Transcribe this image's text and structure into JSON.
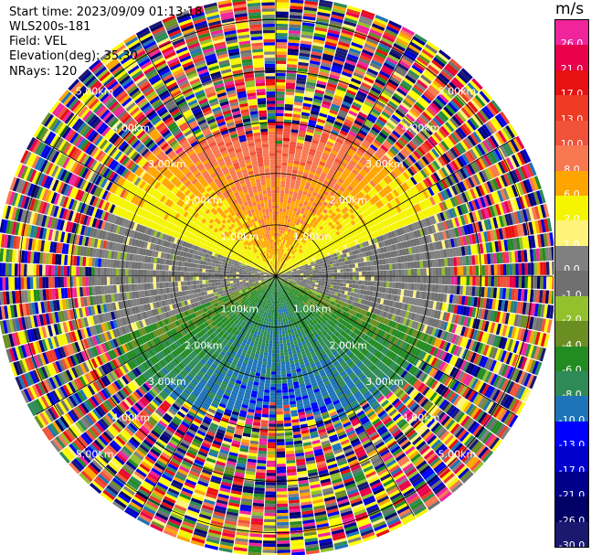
{
  "header": {
    "start_time": "Start time: 2023/09/09 01:13:18",
    "instrument": "WLS200s-181",
    "field": "Field: VEL",
    "elevation": "Elevation(deg): 35.30",
    "nrays": "NRays: 120"
  },
  "colorbar": {
    "unit": "m/s",
    "entries": [
      {
        "label": "26.0",
        "color": "#f0249b"
      },
      {
        "label": "21.0",
        "color": "#e8004a"
      },
      {
        "label": "17.0",
        "color": "#e81010"
      },
      {
        "label": "13.0",
        "color": "#ef3a24"
      },
      {
        "label": "10.0",
        "color": "#f0523a"
      },
      {
        "label": "8.0",
        "color": "#f87850"
      },
      {
        "label": "6.0",
        "color": "#ffa500"
      },
      {
        "label": "2.0",
        "color": "#f5f500"
      },
      {
        "label": "1.0",
        "color": "#fff37a"
      },
      {
        "label": "0.0",
        "color": "#808080"
      },
      {
        "label": "-1.0",
        "color": "#707070"
      },
      {
        "label": "-2.0",
        "color": "#93c12d"
      },
      {
        "label": "-4.0",
        "color": "#6b8e23"
      },
      {
        "label": "-6.0",
        "color": "#228b22"
      },
      {
        "label": "-8.0",
        "color": "#2e8b57"
      },
      {
        "label": "-10.0",
        "color": "#1e74b8"
      },
      {
        "label": "-13.0",
        "color": "#0000ff"
      },
      {
        "label": "-17.0",
        "color": "#0000cd"
      },
      {
        "label": "-21.0",
        "color": "#00008b"
      },
      {
        "label": "-26.0",
        "color": "#000066"
      },
      {
        "label": "-30.0",
        "color": "#191970"
      }
    ]
  },
  "chart_data": {
    "type": "heatmap",
    "subtype": "ppi-polar",
    "field": "VEL",
    "units": "m/s",
    "n_rays": 120,
    "elevation_deg": 35.3,
    "range_rings_km": [
      1.0,
      2.0,
      3.0,
      4.0,
      5.0
    ],
    "ring_labels": [
      "1.00km",
      "2.00km",
      "3.00km",
      "4.00km",
      "5.00km"
    ],
    "max_range_km": 5.4,
    "spoke_angles_deg": [
      0,
      30,
      60,
      90,
      120,
      150,
      180,
      210,
      240,
      270,
      300,
      330
    ],
    "ring_label_azimuths_deg": [
      45,
      135,
      225,
      315
    ],
    "pattern": {
      "description_values_m_s": "approximate velocity structure by range and azimuth",
      "inner_north": 8.0,
      "inner_south": -6.0,
      "noise_beyond_km": 3.0
    }
  }
}
